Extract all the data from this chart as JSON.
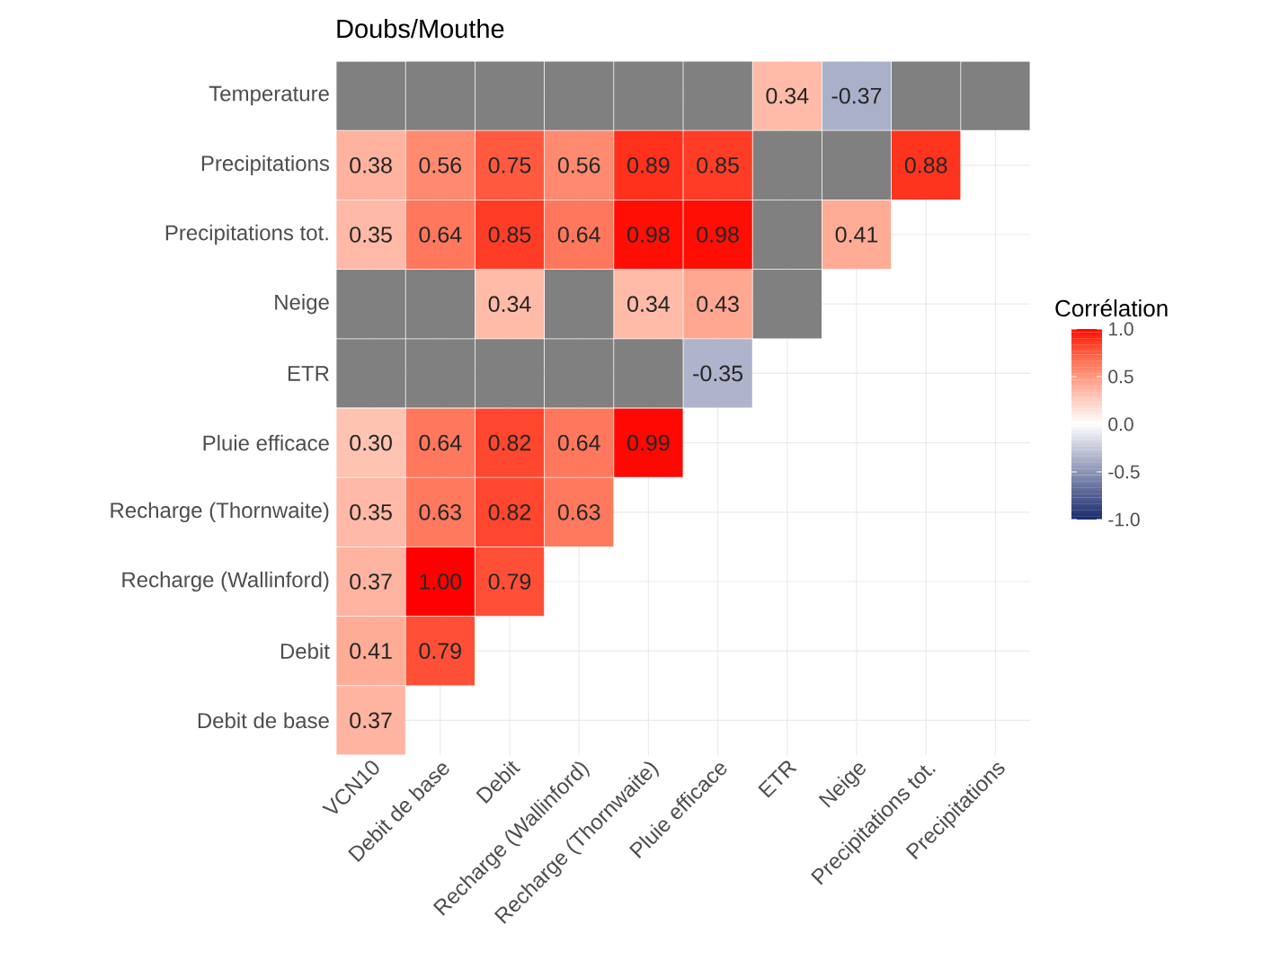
{
  "chart_data": {
    "type": "heatmap",
    "title": "Doubs/Mouthe",
    "clabel": "Corrélation",
    "categories": [
      "VCN10",
      "Debit de base",
      "Debit",
      "Recharge (Wallinford)",
      "Recharge (Thornwaite)",
      "Pluie efficace",
      "ETR",
      "Neige",
      "Precipitations tot.",
      "Precipitations"
    ],
    "y_categories": [
      "Temperature",
      "Precipitations",
      "Precipitations tot.",
      "Neige",
      "ETR",
      "Pluie efficace",
      "Recharge (Thornwaite)",
      "Recharge (Wallinford)",
      "Debit",
      "Debit de base"
    ],
    "cells": [
      [
        null,
        null,
        null,
        null,
        null,
        null,
        0.34,
        -0.37,
        null,
        null
      ],
      [
        0.38,
        0.56,
        0.75,
        0.56,
        0.89,
        0.85,
        null,
        null,
        0.88,
        null
      ],
      [
        0.35,
        0.64,
        0.85,
        0.64,
        0.98,
        0.98,
        null,
        0.41,
        null,
        null
      ],
      [
        null,
        null,
        0.34,
        null,
        0.34,
        0.43,
        null,
        null,
        null,
        null
      ],
      [
        null,
        null,
        null,
        null,
        null,
        -0.35,
        null,
        null,
        null,
        null
      ],
      [
        0.3,
        0.64,
        0.82,
        0.64,
        0.99,
        null,
        null,
        null,
        null,
        null
      ],
      [
        0.35,
        0.63,
        0.82,
        0.63,
        null,
        null,
        null,
        null,
        null,
        null
      ],
      [
        0.37,
        1.0,
        0.79,
        null,
        null,
        null,
        null,
        null,
        null,
        null
      ],
      [
        0.41,
        0.79,
        null,
        null,
        null,
        null,
        null,
        null,
        null,
        null
      ],
      [
        0.37,
        null,
        null,
        null,
        null,
        null,
        null,
        null,
        null,
        null
      ]
    ],
    "cell_labels": [
      [
        null,
        null,
        null,
        null,
        null,
        null,
        "0.34",
        "-0.37",
        null,
        null
      ],
      [
        "0.38",
        "0.56",
        "0.75",
        "0.56",
        "0.89",
        "0.85",
        null,
        null,
        "0.88",
        null
      ],
      [
        "0.35",
        "0.64",
        "0.85",
        "0.64",
        "0.98",
        "0.98",
        null,
        "0.41",
        null,
        null
      ],
      [
        null,
        null,
        "0.34",
        null,
        "0.34",
        "0.43",
        null,
        null,
        null,
        null
      ],
      [
        null,
        null,
        null,
        null,
        null,
        "-0.35",
        null,
        null,
        null,
        null
      ],
      [
        "0.30",
        "0.64",
        "0.82",
        "0.64",
        "0.99",
        null,
        null,
        null,
        null,
        null
      ],
      [
        "0.35",
        "0.63",
        "0.82",
        "0.63",
        null,
        null,
        null,
        null,
        null,
        null
      ],
      [
        "0.37",
        "1.00",
        "0.79",
        null,
        null,
        null,
        null,
        null,
        null,
        null
      ],
      [
        "0.41",
        "0.79",
        null,
        null,
        null,
        null,
        null,
        null,
        null,
        null
      ],
      [
        "0.37",
        null,
        null,
        null,
        null,
        null,
        null,
        null,
        null,
        null
      ]
    ],
    "data_labels": true,
    "grid": true,
    "clim": [
      -1,
      1
    ],
    "cticks": [
      {
        "value": 1,
        "label": "1.0"
      },
      {
        "value": 0.5,
        "label": "0.5"
      },
      {
        "value": 0,
        "label": "0.0"
      },
      {
        "value": -0.5,
        "label": "-0.5"
      },
      {
        "value": -1,
        "label": "-1.0"
      }
    ]
  }
}
